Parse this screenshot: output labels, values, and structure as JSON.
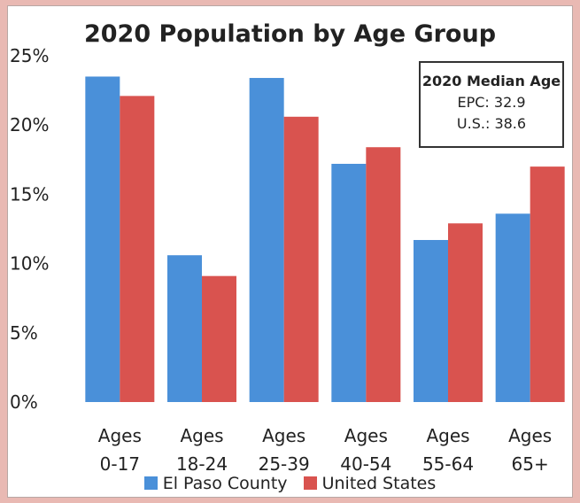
{
  "chart_data": {
    "type": "bar",
    "title": "2020 Population by Age Group",
    "categories": [
      [
        "Ages",
        "0-17"
      ],
      [
        "Ages",
        "18-24"
      ],
      [
        "Ages",
        "25-39"
      ],
      [
        "Ages",
        "40-54"
      ],
      [
        "Ages",
        "55-64"
      ],
      [
        "Ages",
        "65+"
      ]
    ],
    "series": [
      {
        "name": "El Paso County",
        "color": "#4a90d9",
        "values": [
          23.5,
          10.6,
          23.4,
          17.2,
          11.7,
          13.6
        ]
      },
      {
        "name": "United States",
        "color": "#d9534f",
        "values": [
          22.1,
          9.1,
          20.6,
          18.4,
          12.9,
          17.0
        ]
      }
    ],
    "ylim": [
      0,
      25
    ],
    "yticks": [
      "0%",
      "5%",
      "10%",
      "15%",
      "20%",
      "25%"
    ],
    "grid": false,
    "legend": "bottom"
  },
  "median_box": {
    "title": "2020 Median Age",
    "lines": [
      "EPC: 32.9",
      "U.S.: 38.6"
    ]
  }
}
